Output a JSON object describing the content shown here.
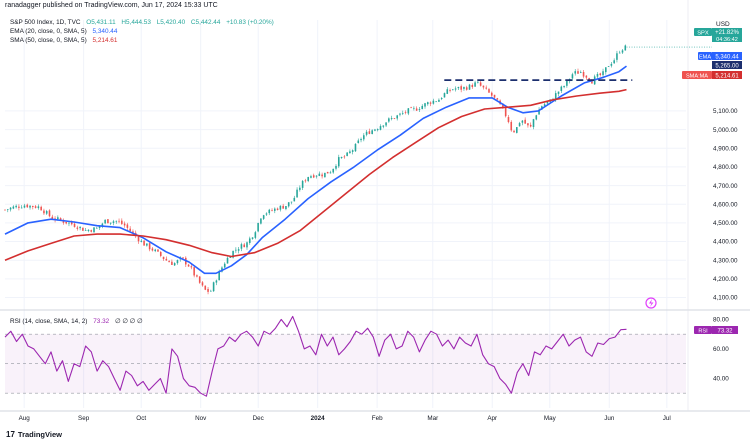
{
  "header": {
    "publisher": "ranadagger published on TradingView.com, Jun 17, 2024 15:33 UTC"
  },
  "ohlc": {
    "symbol": "S&P 500 Index, 1D, TVC",
    "open": "O5,431.11",
    "high": "H5,444.53",
    "low": "L5,420.40",
    "close": "C5,442.44",
    "change": "+10.83 (+0.20%)"
  },
  "ema_legend": {
    "label": "EMA (20, close, 0, SMA, 5)",
    "value": "5,340.44"
  },
  "sma_legend": {
    "label": "SMA (50, close, 0, SMA, 5)",
    "value": "5,214.61"
  },
  "rsi_legend": {
    "label": "RSI (14, close, SMA, 14, 2)",
    "value": "73.32",
    "extra": "∅ ∅ ∅ ∅"
  },
  "currency": "USD",
  "price_labels": {
    "spx_name": "SPX",
    "spx_pct": "+21.82%",
    "spx_time": "04:36:42",
    "ema_name": "EMA",
    "ema_value": "5,340.44",
    "level_value": "5,265.00",
    "sma_name": "SMA:MA",
    "sma_value": "5,214.61",
    "rsi_name": "RSI",
    "rsi_value": "73.32"
  },
  "footer": {
    "brand": "TradingView"
  },
  "colors": {
    "up": "#26a69a",
    "down": "#ef5350",
    "ema": "#2962ff",
    "sma": "#d32f2f",
    "rsi": "#9c27b0",
    "level": "#1c2f6e",
    "spx_tag": "#26a69a"
  },
  "chart_data": {
    "type": "candlestick",
    "price_axis": {
      "ticks": [
        "4,100.00",
        "4,200.00",
        "4,300.00",
        "4,400.00",
        "4,500.00",
        "4,600.00",
        "4,700.00",
        "4,800.00",
        "4,900.00",
        "5,000.00",
        "5,100.00"
      ],
      "tick_values": [
        4100,
        4200,
        4300,
        4400,
        4500,
        4600,
        4700,
        4800,
        4900,
        5000,
        5100
      ],
      "range": [
        4060,
        5480
      ]
    },
    "time_axis": {
      "labels": [
        "Aug",
        "Sep",
        "Oct",
        "Nov",
        "Dec",
        "2024",
        "Feb",
        "Mar",
        "Apr",
        "May",
        "Jun",
        "Jul"
      ],
      "label_days": [
        10,
        41,
        71,
        102,
        132,
        163,
        194,
        223,
        254,
        284,
        315,
        345
      ],
      "range_days": [
        0,
        355
      ]
    },
    "anchor_points": [
      [
        0,
        4570
      ],
      [
        5,
        4585
      ],
      [
        10,
        4595
      ],
      [
        18,
        4585
      ],
      [
        24,
        4530
      ],
      [
        30,
        4510
      ],
      [
        36,
        4490
      ],
      [
        42,
        4460
      ],
      [
        48,
        4470
      ],
      [
        52,
        4510
      ],
      [
        58,
        4510
      ],
      [
        62,
        4490
      ],
      [
        66,
        4450
      ],
      [
        72,
        4390
      ],
      [
        78,
        4350
      ],
      [
        84,
        4300
      ],
      [
        88,
        4280
      ],
      [
        92,
        4310
      ],
      [
        96,
        4270
      ],
      [
        100,
        4200
      ],
      [
        104,
        4140
      ],
      [
        107,
        4130
      ],
      [
        110,
        4200
      ],
      [
        114,
        4280
      ],
      [
        118,
        4340
      ],
      [
        122,
        4370
      ],
      [
        126,
        4390
      ],
      [
        130,
        4450
      ],
      [
        134,
        4550
      ],
      [
        138,
        4560
      ],
      [
        142,
        4580
      ],
      [
        146,
        4590
      ],
      [
        150,
        4620
      ],
      [
        154,
        4700
      ],
      [
        158,
        4750
      ],
      [
        162,
        4760
      ],
      [
        166,
        4760
      ],
      [
        170,
        4780
      ],
      [
        174,
        4840
      ],
      [
        178,
        4860
      ],
      [
        182,
        4900
      ],
      [
        186,
        4960
      ],
      [
        190,
        4990
      ],
      [
        194,
        5010
      ],
      [
        198,
        5040
      ],
      [
        202,
        5060
      ],
      [
        206,
        5080
      ],
      [
        210,
        5100
      ],
      [
        214,
        5110
      ],
      [
        218,
        5130
      ],
      [
        222,
        5150
      ],
      [
        226,
        5160
      ],
      [
        230,
        5200
      ],
      [
        234,
        5220
      ],
      [
        238,
        5220
      ],
      [
        242,
        5230
      ],
      [
        246,
        5250
      ],
      [
        250,
        5215
      ],
      [
        254,
        5180
      ],
      [
        258,
        5130
      ],
      [
        262,
        5060
      ],
      [
        264,
        5000
      ],
      [
        266,
        4990
      ],
      [
        268,
        5040
      ],
      [
        270,
        5050
      ],
      [
        272,
        5020
      ],
      [
        274,
        5010
      ],
      [
        276,
        5070
      ],
      [
        280,
        5130
      ],
      [
        284,
        5150
      ],
      [
        288,
        5200
      ],
      [
        292,
        5240
      ],
      [
        296,
        5300
      ],
      [
        300,
        5310
      ],
      [
        304,
        5280
      ],
      [
        306,
        5260
      ],
      [
        308,
        5280
      ],
      [
        312,
        5300
      ],
      [
        314,
        5340
      ],
      [
        316,
        5360
      ],
      [
        318,
        5380
      ],
      [
        320,
        5420
      ],
      [
        322,
        5435
      ],
      [
        324,
        5442
      ]
    ],
    "ema20": [
      [
        0,
        4440
      ],
      [
        12,
        4500
      ],
      [
        24,
        4520
      ],
      [
        36,
        4505
      ],
      [
        48,
        4485
      ],
      [
        60,
        4475
      ],
      [
        72,
        4420
      ],
      [
        84,
        4345
      ],
      [
        96,
        4290
      ],
      [
        104,
        4230
      ],
      [
        110,
        4230
      ],
      [
        118,
        4270
      ],
      [
        126,
        4330
      ],
      [
        134,
        4420
      ],
      [
        146,
        4520
      ],
      [
        158,
        4630
      ],
      [
        170,
        4720
      ],
      [
        182,
        4800
      ],
      [
        194,
        4890
      ],
      [
        206,
        4970
      ],
      [
        218,
        5060
      ],
      [
        230,
        5120
      ],
      [
        242,
        5170
      ],
      [
        254,
        5170
      ],
      [
        262,
        5120
      ],
      [
        270,
        5090
      ],
      [
        278,
        5100
      ],
      [
        290,
        5180
      ],
      [
        302,
        5250
      ],
      [
        312,
        5280
      ],
      [
        320,
        5310
      ],
      [
        324,
        5340
      ]
    ],
    "sma50": [
      [
        0,
        4300
      ],
      [
        12,
        4350
      ],
      [
        24,
        4390
      ],
      [
        36,
        4430
      ],
      [
        48,
        4440
      ],
      [
        60,
        4440
      ],
      [
        72,
        4430
      ],
      [
        84,
        4410
      ],
      [
        96,
        4380
      ],
      [
        108,
        4340
      ],
      [
        118,
        4320
      ],
      [
        130,
        4340
      ],
      [
        142,
        4390
      ],
      [
        154,
        4460
      ],
      [
        166,
        4560
      ],
      [
        178,
        4660
      ],
      [
        190,
        4760
      ],
      [
        202,
        4850
      ],
      [
        214,
        4930
      ],
      [
        226,
        5010
      ],
      [
        238,
        5070
      ],
      [
        250,
        5110
      ],
      [
        262,
        5120
      ],
      [
        274,
        5130
      ],
      [
        286,
        5160
      ],
      [
        298,
        5180
      ],
      [
        310,
        5195
      ],
      [
        320,
        5205
      ],
      [
        324,
        5214
      ]
    ],
    "level": {
      "value": 5265,
      "from_day": 229,
      "to_day": 327
    },
    "rsi": {
      "range": [
        20,
        85
      ],
      "ticks": [
        "40.00",
        "60.00",
        "80.00"
      ],
      "tick_values": [
        40,
        60,
        80
      ],
      "overbought": 70,
      "oversold": 30,
      "points": [
        [
          0,
          68
        ],
        [
          3,
          72
        ],
        [
          6,
          65
        ],
        [
          9,
          70
        ],
        [
          12,
          62
        ],
        [
          15,
          60
        ],
        [
          18,
          55
        ],
        [
          21,
          50
        ],
        [
          24,
          58
        ],
        [
          27,
          45
        ],
        [
          30,
          52
        ],
        [
          33,
          38
        ],
        [
          36,
          50
        ],
        [
          39,
          48
        ],
        [
          42,
          62
        ],
        [
          45,
          58
        ],
        [
          48,
          45
        ],
        [
          51,
          52
        ],
        [
          54,
          48
        ],
        [
          57,
          40
        ],
        [
          60,
          32
        ],
        [
          63,
          45
        ],
        [
          66,
          42
        ],
        [
          69,
          35
        ],
        [
          72,
          38
        ],
        [
          75,
          32
        ],
        [
          78,
          36
        ],
        [
          81,
          40
        ],
        [
          84,
          30
        ],
        [
          87,
          60
        ],
        [
          90,
          55
        ],
        [
          93,
          40
        ],
        [
          96,
          35
        ],
        [
          99,
          34
        ],
        [
          102,
          30
        ],
        [
          105,
          28
        ],
        [
          108,
          45
        ],
        [
          111,
          60
        ],
        [
          114,
          62
        ],
        [
          117,
          68
        ],
        [
          120,
          65
        ],
        [
          123,
          70
        ],
        [
          126,
          72
        ],
        [
          129,
          68
        ],
        [
          132,
          62
        ],
        [
          135,
          72
        ],
        [
          138,
          70
        ],
        [
          141,
          74
        ],
        [
          144,
          80
        ],
        [
          147,
          75
        ],
        [
          150,
          82
        ],
        [
          153,
          72
        ],
        [
          156,
          60
        ],
        [
          159,
          62
        ],
        [
          162,
          56
        ],
        [
          165,
          70
        ],
        [
          168,
          62
        ],
        [
          171,
          68
        ],
        [
          174,
          56
        ],
        [
          177,
          60
        ],
        [
          180,
          65
        ],
        [
          183,
          72
        ],
        [
          186,
          70
        ],
        [
          189,
          74
        ],
        [
          192,
          68
        ],
        [
          195,
          55
        ],
        [
          198,
          66
        ],
        [
          201,
          70
        ],
        [
          204,
          60
        ],
        [
          207,
          62
        ],
        [
          210,
          72
        ],
        [
          213,
          68
        ],
        [
          216,
          58
        ],
        [
          219,
          66
        ],
        [
          222,
          72
        ],
        [
          225,
          70
        ],
        [
          228,
          62
        ],
        [
          231,
          66
        ],
        [
          234,
          60
        ],
        [
          237,
          68
        ],
        [
          240,
          64
        ],
        [
          243,
          62
        ],
        [
          246,
          70
        ],
        [
          249,
          56
        ],
        [
          252,
          50
        ],
        [
          255,
          48
        ],
        [
          258,
          40
        ],
        [
          261,
          36
        ],
        [
          264,
          30
        ],
        [
          267,
          44
        ],
        [
          270,
          50
        ],
        [
          273,
          42
        ],
        [
          276,
          58
        ],
        [
          279,
          56
        ],
        [
          282,
          62
        ],
        [
          285,
          60
        ],
        [
          288,
          65
        ],
        [
          291,
          70
        ],
        [
          294,
          62
        ],
        [
          297,
          66
        ],
        [
          300,
          68
        ],
        [
          303,
          58
        ],
        [
          306,
          55
        ],
        [
          309,
          64
        ],
        [
          312,
          63
        ],
        [
          315,
          67
        ],
        [
          318,
          68
        ],
        [
          321,
          73
        ],
        [
          324,
          73.32
        ]
      ]
    }
  }
}
